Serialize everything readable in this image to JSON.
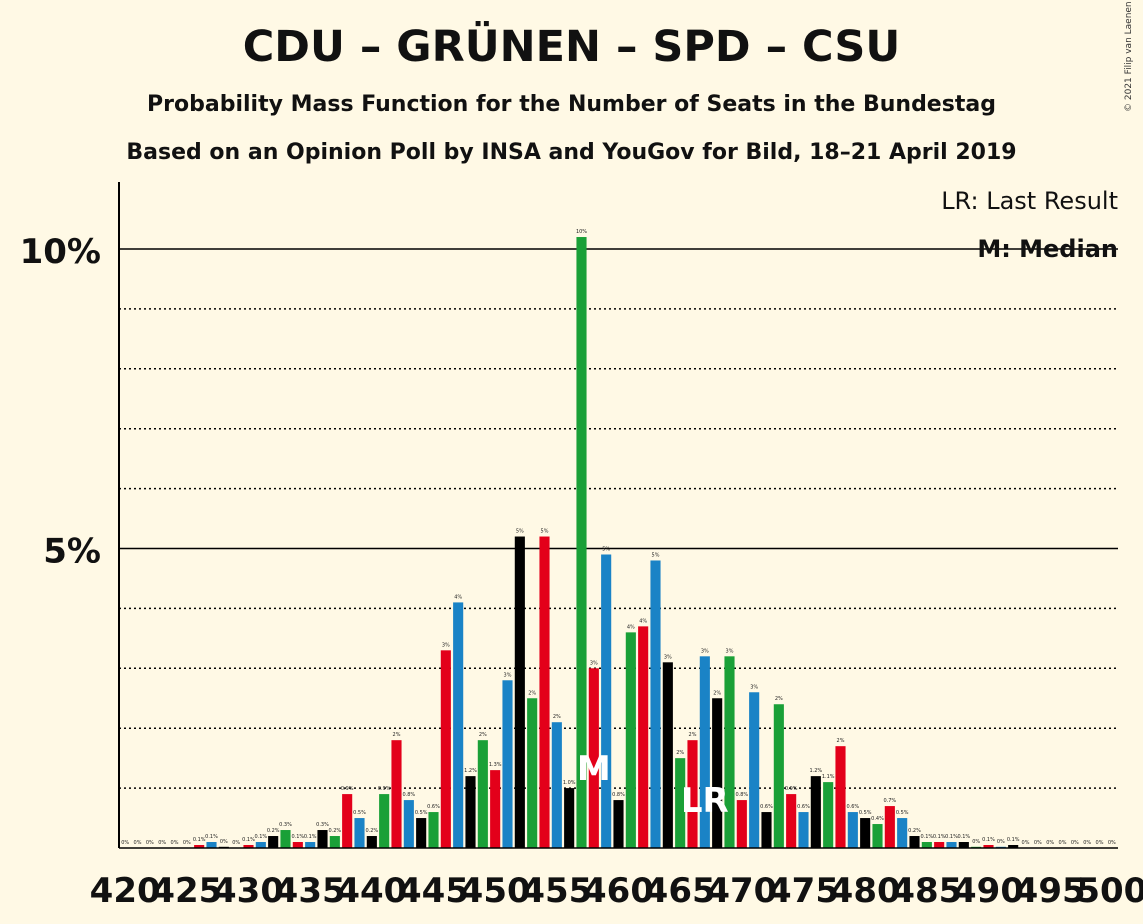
{
  "title": "CDU – GRÜNEN – SPD – CSU",
  "subtitle": "Probability Mass Function for the Number of Seats in the Bundestag",
  "poll_line": "Based on an Opinion Poll by INSA and YouGov for Bild, 18–21 April 2019",
  "copyright": "© 2021 Filip van Laenen",
  "legend": {
    "last_result": "LR: Last Result",
    "median": "M: Median"
  },
  "colors": {
    "background": "#fff9e5",
    "black": "#000000",
    "green": "#1aa037",
    "red": "#e3001a",
    "blue": "#1a83c6"
  },
  "chart_data": {
    "type": "bar",
    "ylim": [
      0,
      11
    ],
    "yticks": [
      {
        "value": 5,
        "label": "5%"
      },
      {
        "value": 10,
        "label": "10%"
      }
    ],
    "gridlines": [
      1,
      2,
      3,
      4,
      6,
      7,
      8,
      9
    ],
    "xtick_labels": [
      "420",
      "425",
      "430",
      "435",
      "440",
      "445",
      "450",
      "455",
      "460",
      "465",
      "470",
      "475",
      "480",
      "485",
      "490",
      "495",
      "500"
    ],
    "color_cycle": [
      "black",
      "green",
      "red",
      "blue"
    ],
    "seats": [
      420,
      421,
      422,
      423,
      424,
      425,
      426,
      427,
      428,
      429,
      430,
      431,
      432,
      433,
      434,
      435,
      436,
      437,
      438,
      439,
      440,
      441,
      442,
      443,
      444,
      445,
      446,
      447,
      448,
      449,
      450,
      451,
      452,
      453,
      454,
      455,
      456,
      457,
      458,
      459,
      460,
      461,
      462,
      463,
      464,
      465,
      466,
      467,
      468,
      469,
      470,
      471,
      472,
      473,
      474,
      475,
      476,
      477,
      478,
      479,
      480,
      481,
      482,
      483,
      484,
      485,
      486,
      487,
      488,
      489,
      490,
      491,
      492,
      493,
      494,
      495,
      496,
      497,
      498,
      499,
      500
    ],
    "values": [
      0,
      0,
      0,
      0,
      0,
      0,
      0.05,
      0.1,
      0.02,
      0,
      0.05,
      0.1,
      0.2,
      0.3,
      0.1,
      0.1,
      0.3,
      0.2,
      0.9,
      0.5,
      0.2,
      0.9,
      1.8,
      0.8,
      0.5,
      0.6,
      3.3,
      4.1,
      1.2,
      1.8,
      1.3,
      2.8,
      5.2,
      2.5,
      5.2,
      2.1,
      1.0,
      10.2,
      3.0,
      4.9,
      0.8,
      3.6,
      3.7,
      4.8,
      3.1,
      1.5,
      1.8,
      3.2,
      2.5,
      3.2,
      0.8,
      2.6,
      0.6,
      2.4,
      0.9,
      0.6,
      1.2,
      1.1,
      1.7,
      0.6,
      0.5,
      0.4,
      0.7,
      0.5,
      0.2,
      0.1,
      0.1,
      0.1,
      0.1,
      0.02,
      0.05,
      0.02,
      0.05,
      0,
      0,
      0,
      0,
      0,
      0,
      0,
      0
    ],
    "labels": [
      "0%",
      "0%",
      "0%",
      "0%",
      "0%",
      "0%",
      "0.1%",
      "0.1%",
      "0%",
      "0%",
      "0.1%",
      "0.1%",
      "0.2%",
      "0.3%",
      "0.1%",
      "0.1%",
      "0.3%",
      "0.2%",
      "0.9%",
      "0.5%",
      "0.2%",
      "0.9%",
      "2%",
      "0.8%",
      "0.5%",
      "0.6%",
      "3%",
      "4%",
      "1.2%",
      "2%",
      "1.3%",
      "3%",
      "5%",
      "2%",
      "5%",
      "2%",
      "1.0%",
      "10%",
      "3%",
      "5%",
      "0.8%",
      "4%",
      "4%",
      "5%",
      "3%",
      "2%",
      "2%",
      "3%",
      "2%",
      "3%",
      "0.8%",
      "3%",
      "0.6%",
      "2%",
      "0.9%",
      "0.6%",
      "1.2%",
      "1.1%",
      "2%",
      "0.6%",
      "0.5%",
      "0.4%",
      "0.7%",
      "0.5%",
      "0.2%",
      "0.1%",
      "0.1%",
      "0.1%",
      "0.1%",
      "0%",
      "0.1%",
      "0%",
      "0.1%",
      "0%",
      "0%",
      "0%",
      "0%",
      "0%",
      "0%",
      "0%",
      "0%"
    ],
    "median_seat": 458,
    "median_label": "M",
    "last_result_seat": 467,
    "last_result_label": "LR"
  }
}
